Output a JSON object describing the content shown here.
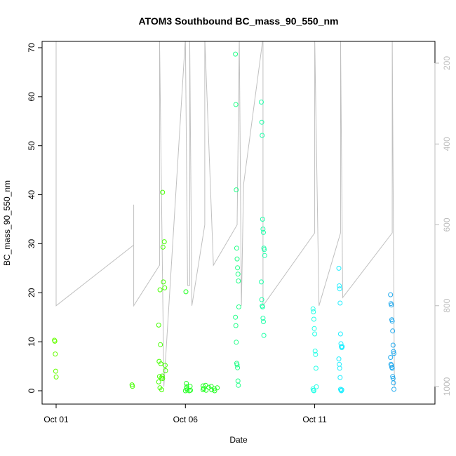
{
  "chart_data": {
    "type": "scatter",
    "title": "ATOM3 Southbound BC_mass_90_550_nm",
    "xlabel": "Date",
    "ylabel": "BC_mass_90_550_nm",
    "xlim": [
      "2017-10-01",
      "2017-10-15"
    ],
    "ylim": [
      0,
      71
    ],
    "x_tick_labels": [
      {
        "label": "Oct 01",
        "date": "2017-10-01"
      },
      {
        "label": "Oct 06",
        "date": "2017-10-06"
      },
      {
        "label": "Oct 11",
        "date": "2017-10-11"
      }
    ],
    "y_ticks": [
      0,
      10,
      20,
      30,
      40,
      50,
      60,
      70
    ],
    "secondary_axis": {
      "side": "right",
      "color": "#bdbdbd",
      "reversed": true,
      "ticks": [
        200,
        400,
        600,
        800,
        1000
      ],
      "note": "gray line trace plotted against reversed right axis"
    },
    "series": [
      {
        "color": "#66ff00",
        "points": [
          [
            "2017-10-01 00:00",
            10.3
          ],
          [
            "2017-10-01 00:00",
            10.1
          ],
          [
            "2017-10-01 00:00",
            7.5
          ],
          [
            "2017-10-01 00:00",
            4.0
          ],
          [
            "2017-10-01 00:05",
            2.8
          ]
        ]
      },
      {
        "color": "#44ff00",
        "points": [
          [
            "2017-10-04 00:00",
            1.2
          ],
          [
            "2017-10-04 00:00",
            0.9
          ],
          [
            "2017-10-05 00:00",
            13.4
          ],
          [
            "2017-10-05 00:00",
            6.0
          ],
          [
            "2017-10-05 00:00",
            2.9
          ],
          [
            "2017-10-05 00:00",
            0.6
          ],
          [
            "2017-10-05 02:00",
            40.5
          ],
          [
            "2017-10-05 02:00",
            29.3
          ],
          [
            "2017-10-05 02:00",
            22.2
          ],
          [
            "2017-10-05 02:00",
            20.6
          ],
          [
            "2017-10-05 02:00",
            9.4
          ],
          [
            "2017-10-05 02:00",
            5.5
          ],
          [
            "2017-10-05 02:00",
            2.6
          ],
          [
            "2017-10-05 02:00",
            0.2
          ],
          [
            "2017-10-05 04:00",
            30.4
          ],
          [
            "2017-10-05 04:00",
            21.0
          ],
          [
            "2017-10-05 04:00",
            5.2
          ],
          [
            "2017-10-05 04:00",
            4.1
          ],
          [
            "2017-10-05 04:00",
            3.0
          ],
          [
            "2017-10-05 04:00",
            2.5
          ],
          [
            "2017-10-05 00:00",
            1.8
          ]
        ]
      },
      {
        "color": "#22ff22",
        "points": [
          [
            "2017-10-06 02:00",
            20.2
          ],
          [
            "2017-10-06 02:00",
            1.5
          ],
          [
            "2017-10-06 02:00",
            0.8
          ],
          [
            "2017-10-06 02:00",
            0.2
          ],
          [
            "2017-10-06 00:00",
            0.0
          ],
          [
            "2017-10-06 04:00",
            0.9
          ],
          [
            "2017-10-06 04:00",
            0.1
          ],
          [
            "2017-10-06 00:00",
            0.5
          ],
          [
            "2017-10-06 02:00",
            0.0
          ],
          [
            "2017-10-06 18:00",
            1.0
          ],
          [
            "2017-10-06 18:00",
            0.5
          ],
          [
            "2017-10-06 20:00",
            0.1
          ],
          [
            "2017-10-06 22:00",
            0.7
          ],
          [
            "2017-10-07 00:00",
            0.9
          ],
          [
            "2017-10-07 00:00",
            0.2
          ],
          [
            "2017-10-07 02:00",
            0.4
          ],
          [
            "2017-10-07 02:00",
            0.0
          ],
          [
            "2017-10-07 04:00",
            0.6
          ],
          [
            "2017-10-06 18:00",
            0.2
          ],
          [
            "2017-10-06 20:00",
            1.1
          ]
        ]
      },
      {
        "color": "#22ff88",
        "points": [
          [
            "2017-10-08 00:00",
            68.7
          ],
          [
            "2017-10-08 00:00",
            58.4
          ],
          [
            "2017-10-08 00:00",
            41.0
          ],
          [
            "2017-10-08 00:00",
            29.1
          ],
          [
            "2017-10-08 00:00",
            26.9
          ],
          [
            "2017-10-08 00:00",
            25.1
          ],
          [
            "2017-10-08 00:00",
            23.8
          ],
          [
            "2017-10-08 00:00",
            22.4
          ],
          [
            "2017-10-08 00:00",
            17.1
          ],
          [
            "2017-10-08 00:00",
            15.0
          ],
          [
            "2017-10-08 00:00",
            13.3
          ],
          [
            "2017-10-08 00:00",
            9.9
          ],
          [
            "2017-10-08 00:00",
            5.6
          ],
          [
            "2017-10-08 00:00",
            5.3
          ],
          [
            "2017-10-08 00:00",
            4.7
          ],
          [
            "2017-10-08 00:00",
            2.0
          ],
          [
            "2017-10-08 00:00",
            1.1
          ]
        ]
      },
      {
        "color": "#22ffaa",
        "points": [
          [
            "2017-10-09 00:00",
            58.9
          ],
          [
            "2017-10-09 00:00",
            54.8
          ],
          [
            "2017-10-09 00:00",
            52.1
          ],
          [
            "2017-10-09 00:00",
            35.0
          ],
          [
            "2017-10-09 00:00",
            33.0
          ],
          [
            "2017-10-09 00:00",
            32.3
          ],
          [
            "2017-10-09 00:00",
            29.1
          ],
          [
            "2017-10-09 00:00",
            28.8
          ],
          [
            "2017-10-09 00:00",
            27.6
          ],
          [
            "2017-10-09 00:00",
            22.2
          ],
          [
            "2017-10-09 00:00",
            18.6
          ],
          [
            "2017-10-09 00:00",
            17.3
          ],
          [
            "2017-10-09 00:00",
            17.1
          ],
          [
            "2017-10-09 00:00",
            14.8
          ],
          [
            "2017-10-09 00:00",
            14.1
          ],
          [
            "2017-10-09 00:00",
            11.3
          ]
        ]
      },
      {
        "color": "#22ffe6",
        "points": [
          [
            "2017-10-11 00:00",
            16.7
          ],
          [
            "2017-10-11 00:00",
            16.1
          ],
          [
            "2017-10-11 00:00",
            14.6
          ],
          [
            "2017-10-11 00:00",
            12.7
          ],
          [
            "2017-10-11 00:00",
            11.6
          ],
          [
            "2017-10-11 00:00",
            8.1
          ],
          [
            "2017-10-11 00:00",
            7.4
          ],
          [
            "2017-10-11 00:00",
            4.6
          ],
          [
            "2017-10-11 00:00",
            0.8
          ],
          [
            "2017-10-11 00:00",
            0.4
          ],
          [
            "2017-10-11 00:00",
            0.1
          ],
          [
            "2017-10-11 00:00",
            0.0
          ]
        ]
      },
      {
        "color": "#22eeff",
        "points": [
          [
            "2017-10-12 00:00",
            25.0
          ],
          [
            "2017-10-12 00:00",
            21.4
          ],
          [
            "2017-10-12 00:00",
            20.8
          ],
          [
            "2017-10-12 00:00",
            17.9
          ],
          [
            "2017-10-12 00:00",
            11.6
          ],
          [
            "2017-10-12 00:00",
            9.6
          ],
          [
            "2017-10-12 00:00",
            9.0
          ],
          [
            "2017-10-12 00:00",
            8.8
          ],
          [
            "2017-10-12 00:00",
            9.0
          ],
          [
            "2017-10-12 00:00",
            6.5
          ],
          [
            "2017-10-12 00:00",
            5.4
          ],
          [
            "2017-10-12 00:00",
            4.6
          ],
          [
            "2017-10-12 00:00",
            2.7
          ],
          [
            "2017-10-12 00:00",
            0.3
          ],
          [
            "2017-10-12 00:00",
            0.1
          ],
          [
            "2017-10-12 00:00",
            0.0
          ],
          [
            "2017-10-12 00:00",
            0.2
          ]
        ]
      },
      {
        "color": "#22aaee",
        "points": [
          [
            "2017-10-14 00:00",
            19.6
          ],
          [
            "2017-10-14 00:00",
            17.8
          ],
          [
            "2017-10-14 00:00",
            17.5
          ],
          [
            "2017-10-14 00:00",
            14.5
          ],
          [
            "2017-10-14 00:00",
            14.2
          ],
          [
            "2017-10-14 00:00",
            12.2
          ],
          [
            "2017-10-14 00:00",
            9.3
          ],
          [
            "2017-10-14 00:00",
            8.0
          ],
          [
            "2017-10-14 00:00",
            7.6
          ],
          [
            "2017-10-14 00:00",
            6.8
          ],
          [
            "2017-10-14 00:00",
            5.4
          ],
          [
            "2017-10-14 00:00",
            5.2
          ],
          [
            "2017-10-14 00:00",
            4.8
          ],
          [
            "2017-10-14 00:00",
            4.6
          ],
          [
            "2017-10-14 00:00",
            2.9
          ],
          [
            "2017-10-14 00:00",
            2.5
          ],
          [
            "2017-10-14 00:00",
            1.6
          ],
          [
            "2017-10-14 00:00",
            0.3
          ]
        ]
      }
    ],
    "gray_trace": {
      "color": "#c0c0c0",
      "axis": "secondary",
      "points": [
        [
          "2017-10-01 00:00",
          0
        ],
        [
          "2017-10-01 00:00",
          800
        ],
        [
          "2017-10-04 00:00",
          650
        ],
        [
          "2017-10-04 00:00",
          550
        ],
        [
          "2017-10-04 00:00",
          800
        ],
        [
          "2017-10-05 00:00",
          700
        ],
        [
          "2017-10-05 00:00",
          0
        ],
        [
          "2017-10-05 04:00",
          1000
        ],
        [
          "2017-10-06 00:00",
          0
        ],
        [
          "2017-10-06 02:00",
          750
        ],
        [
          "2017-10-06 04:00",
          750
        ],
        [
          "2017-10-06 04:00",
          0
        ],
        [
          "2017-10-06 06:00",
          800
        ],
        [
          "2017-10-06 18:00",
          600
        ],
        [
          "2017-10-06 18:00",
          0
        ],
        [
          "2017-10-07 02:00",
          700
        ],
        [
          "2017-10-08 00:00",
          600
        ],
        [
          "2017-10-08 02:00",
          0
        ],
        [
          "2017-10-08 04:00",
          800
        ],
        [
          "2017-10-08 06:00",
          500
        ],
        [
          "2017-10-09 00:00",
          0
        ],
        [
          "2017-10-09 00:00",
          800
        ],
        [
          "2017-10-11 00:00",
          620
        ],
        [
          "2017-10-11 00:00",
          0
        ],
        [
          "2017-10-11 04:00",
          800
        ],
        [
          "2017-10-12 00:00",
          620
        ],
        [
          "2017-10-12 00:00",
          0
        ],
        [
          "2017-10-12 02:00",
          780
        ],
        [
          "2017-10-14 00:00",
          620
        ],
        [
          "2017-10-14 00:00",
          0
        ],
        [
          "2017-10-14 02:00",
          1000
        ]
      ]
    }
  }
}
